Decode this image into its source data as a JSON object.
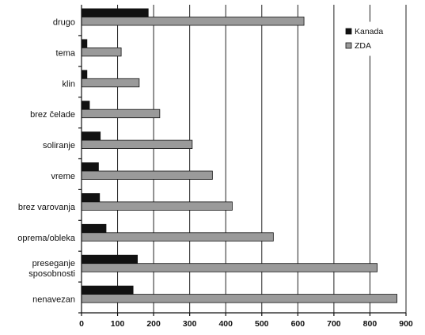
{
  "chart_data": {
    "type": "bar",
    "orientation": "horizontal",
    "categories": [
      "drugo",
      "tema",
      "klin",
      "brez čelade",
      "soliranje",
      "vreme",
      "brez varovanja",
      "oprema/obleka",
      "preseganje sposobnosti",
      "nenavezan"
    ],
    "category_lines": [
      [
        "drugo"
      ],
      [
        "tema"
      ],
      [
        "klin"
      ],
      [
        "brez čelade"
      ],
      [
        "soliranje"
      ],
      [
        "vreme"
      ],
      [
        "brez varovanja"
      ],
      [
        "oprema/obleka"
      ],
      [
        "preseganje",
        "sposobnosti"
      ],
      [
        "nenavezan"
      ]
    ],
    "series": [
      {
        "name": "Kanada",
        "color": "#111111",
        "values": [
          185,
          15,
          15,
          22,
          52,
          47,
          50,
          68,
          155,
          143
        ]
      },
      {
        "name": "ZDA",
        "color": "#9a9a9a",
        "values": [
          617,
          110,
          160,
          217,
          307,
          363,
          418,
          532,
          820,
          875
        ]
      }
    ],
    "xlim": [
      0,
      900
    ],
    "xticks": [
      0,
      100,
      200,
      300,
      400,
      500,
      600,
      700,
      800,
      900
    ],
    "title": "",
    "xlabel": "",
    "ylabel": "",
    "grid": "vertical",
    "legend_position": "top-right"
  }
}
